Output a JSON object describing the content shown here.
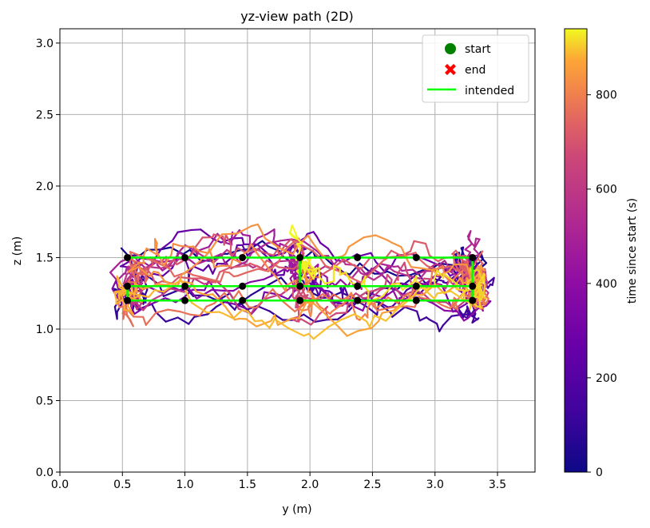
{
  "chart_data": {
    "type": "line",
    "title": "yz-view path (2D)",
    "xlabel": "y (m)",
    "ylabel": "z (m)",
    "xlim": [
      0.0,
      3.8
    ],
    "ylim": [
      0.0,
      3.1
    ],
    "xticks": [
      "0.0",
      "0.5",
      "1.0",
      "1.5",
      "2.0",
      "2.5",
      "3.0",
      "3.5"
    ],
    "yticks": [
      "0.0",
      "0.5",
      "1.0",
      "1.5",
      "2.0",
      "2.5",
      "3.0"
    ],
    "grid": true,
    "legend_position": "top-right",
    "legend": [
      {
        "label": "start",
        "marker": "circle",
        "color": "#008000"
      },
      {
        "label": "end",
        "marker": "x",
        "color": "#ff0000"
      },
      {
        "label": "intended",
        "marker": "line",
        "color": "#00ff00"
      }
    ],
    "colorbar": {
      "label": "time since start (s)",
      "range": [
        0,
        940
      ],
      "ticks": [
        "0",
        "200",
        "400",
        "600",
        "800"
      ],
      "colormap": "plasma"
    },
    "waypoints": {
      "y": [
        0.54,
        1.0,
        1.46,
        1.92,
        2.38,
        2.85,
        3.3
      ],
      "z": [
        1.2,
        1.3,
        1.5
      ]
    },
    "intended_path": [
      [
        0.54,
        1.5
      ],
      [
        3.3,
        1.5
      ],
      [
        3.3,
        1.3
      ],
      [
        0.54,
        1.3
      ],
      [
        0.54,
        1.2
      ],
      [
        3.3,
        1.2
      ],
      [
        3.3,
        1.3
      ],
      [
        1.92,
        1.3
      ],
      [
        1.92,
        1.5
      ]
    ],
    "path_extent": {
      "y": [
        0.4,
        3.55
      ],
      "z": [
        0.9,
        1.97
      ]
    }
  }
}
